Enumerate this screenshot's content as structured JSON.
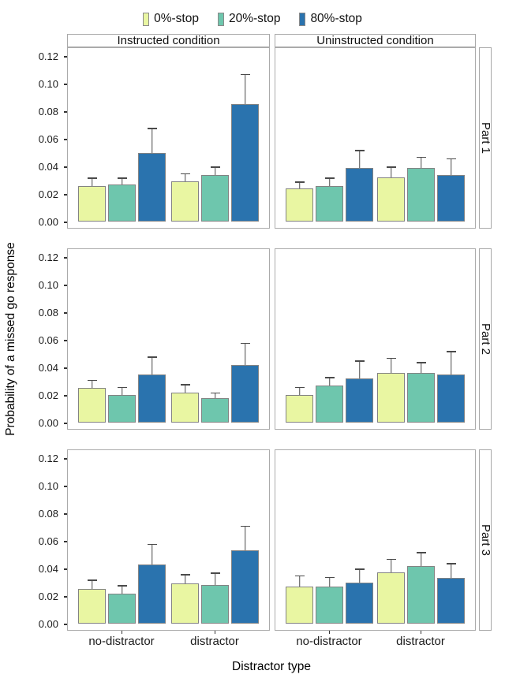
{
  "chart_data": {
    "type": "bar",
    "title": "",
    "facet_cols": [
      "Instructed condition",
      "Uninstructed condition"
    ],
    "facet_rows": [
      "Part 1",
      "Part 2",
      "Part 3"
    ],
    "categories": [
      "no-distractor",
      "distractor"
    ],
    "series_names": [
      "0%-stop",
      "20%-stop",
      "80%-stop"
    ],
    "series_colors": [
      "#e9f6a2",
      "#6ec6ad",
      "#2a73ae"
    ],
    "xlabel": "Distractor type",
    "ylabel": "Probability of a missed go response",
    "ylim": [
      0,
      0.127
    ],
    "yticks": [
      0.0,
      0.02,
      0.04,
      0.06,
      0.08,
      0.1,
      0.12
    ],
    "ytick_labels": [
      "0.00",
      "0.02",
      "0.04",
      "0.06",
      "0.08",
      "0.10",
      "0.12"
    ],
    "grid": false,
    "legend_position": "top",
    "error_bar_note": "error_tops are the upper ends of SE whiskers",
    "panels": [
      {
        "row": "Part 1",
        "col": "Instructed condition",
        "groups": [
          {
            "category": "no-distractor",
            "values": [
              0.026,
              0.027,
              0.05
            ],
            "error_tops": [
              0.032,
              0.032,
              0.068
            ]
          },
          {
            "category": "distractor",
            "values": [
              0.029,
              0.034,
              0.085
            ],
            "error_tops": [
              0.035,
              0.04,
              0.107
            ]
          }
        ]
      },
      {
        "row": "Part 1",
        "col": "Uninstructed condition",
        "groups": [
          {
            "category": "no-distractor",
            "values": [
              0.024,
              0.026,
              0.039
            ],
            "error_tops": [
              0.029,
              0.032,
              0.052
            ]
          },
          {
            "category": "distractor",
            "values": [
              0.032,
              0.039,
              0.034
            ],
            "error_tops": [
              0.04,
              0.047,
              0.046
            ]
          }
        ]
      },
      {
        "row": "Part 2",
        "col": "Instructed condition",
        "groups": [
          {
            "category": "no-distractor",
            "values": [
              0.025,
              0.02,
              0.035
            ],
            "error_tops": [
              0.031,
              0.026,
              0.048
            ]
          },
          {
            "category": "distractor",
            "values": [
              0.022,
              0.018,
              0.042
            ],
            "error_tops": [
              0.028,
              0.022,
              0.058
            ]
          }
        ]
      },
      {
        "row": "Part 2",
        "col": "Uninstructed condition",
        "groups": [
          {
            "category": "no-distractor",
            "values": [
              0.02,
              0.027,
              0.032
            ],
            "error_tops": [
              0.026,
              0.033,
              0.045
            ]
          },
          {
            "category": "distractor",
            "values": [
              0.036,
              0.036,
              0.035
            ],
            "error_tops": [
              0.047,
              0.044,
              0.052
            ]
          }
        ]
      },
      {
        "row": "Part 3",
        "col": "Instructed condition",
        "groups": [
          {
            "category": "no-distractor",
            "values": [
              0.025,
              0.022,
              0.043
            ],
            "error_tops": [
              0.032,
              0.028,
              0.058
            ]
          },
          {
            "category": "distractor",
            "values": [
              0.029,
              0.028,
              0.053
            ],
            "error_tops": [
              0.036,
              0.037,
              0.071
            ]
          }
        ]
      },
      {
        "row": "Part 3",
        "col": "Uninstructed condition",
        "groups": [
          {
            "category": "no-distractor",
            "values": [
              0.027,
              0.027,
              0.03
            ],
            "error_tops": [
              0.035,
              0.034,
              0.04
            ]
          },
          {
            "category": "distractor",
            "values": [
              0.037,
              0.042,
              0.033
            ],
            "error_tops": [
              0.047,
              0.052,
              0.044
            ]
          }
        ]
      }
    ]
  }
}
